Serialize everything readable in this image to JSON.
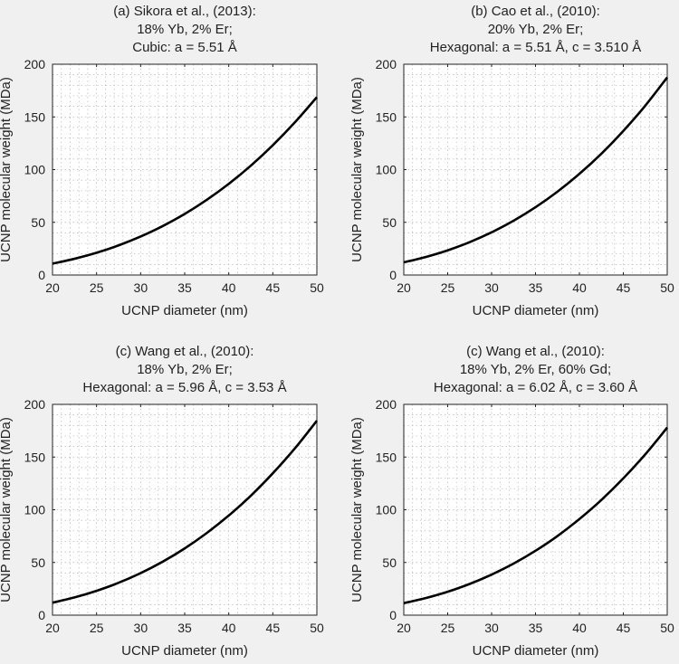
{
  "chart_data": [
    {
      "type": "line",
      "title": [
        "(a) Sikora et al., (2013):",
        "18% Yb, 2% Er;",
        "Cubic: a = 5.51 Å"
      ],
      "xlabel": "UCNP diameter (nm)",
      "ylabel": "UCNP molecular weight (MDa)",
      "xlim": [
        20,
        50
      ],
      "ylim": [
        0,
        200
      ],
      "xticks": [
        20,
        25,
        30,
        35,
        40,
        45,
        50
      ],
      "yticks": [
        0,
        50,
        100,
        150,
        200
      ],
      "grid": true,
      "series": [
        {
          "x": [
            20,
            22.5,
            25,
            27.5,
            30,
            32.5,
            35,
            37.5,
            40,
            42.5,
            45,
            47.5,
            50
          ],
          "y": [
            10.8,
            15.4,
            21.1,
            28.1,
            36.5,
            46.4,
            57.9,
            71.3,
            86.5,
            103.7,
            123.1,
            144.8,
            168.8
          ]
        }
      ]
    },
    {
      "type": "line",
      "title": [
        "(b) Cao et al., (2010):",
        "20% Yb, 2% Er;",
        "Hexagonal: a = 5.51 Å, c = 3.510 Å"
      ],
      "xlabel": "UCNP diameter (nm)",
      "ylabel": "UCNP molecular weight (MDa)",
      "xlim": [
        20,
        50
      ],
      "ylim": [
        0,
        200
      ],
      "xticks": [
        20,
        25,
        30,
        35,
        40,
        45,
        50
      ],
      "yticks": [
        0,
        50,
        100,
        150,
        200
      ],
      "grid": true,
      "series": [
        {
          "x": [
            20,
            22.5,
            25,
            27.5,
            30,
            32.5,
            35,
            37.5,
            40,
            42.5,
            45,
            47.5,
            50
          ],
          "y": [
            12,
            17.1,
            23.4,
            31.2,
            40.5,
            51.5,
            64.3,
            79.1,
            96,
            115.1,
            136.7,
            160.7,
            187.5
          ]
        }
      ]
    },
    {
      "type": "line",
      "title": [
        "(c) Wang et al., (2010):",
        "18% Yb, 2% Er;",
        "Hexagonal: a = 5.96 Å, c = 3.53 Å"
      ],
      "xlabel": "UCNP diameter (nm)",
      "ylabel": "UCNP molecular weight (MDa)",
      "xlim": [
        20,
        50
      ],
      "ylim": [
        0,
        200
      ],
      "xticks": [
        20,
        25,
        30,
        35,
        40,
        45,
        50
      ],
      "yticks": [
        0,
        50,
        100,
        150,
        200
      ],
      "grid": true,
      "series": [
        {
          "x": [
            20,
            22.5,
            25,
            27.5,
            30,
            32.5,
            35,
            37.5,
            40,
            42.5,
            45,
            47.5,
            50
          ],
          "y": [
            11.8,
            16.8,
            23.1,
            30.7,
            39.9,
            50.7,
            63.3,
            77.9,
            94.5,
            113.3,
            134.6,
            158.2,
            184.5
          ]
        }
      ]
    },
    {
      "type": "line",
      "title": [
        "(c) Wang et al., (2010):",
        "18% Yb, 2% Er, 60% Gd;",
        "Hexagonal: a = 6.02 Å, c = 3.60 Å"
      ],
      "xlabel": "UCNP diameter (nm)",
      "ylabel": "UCNP molecular weight (MDa)",
      "xlim": [
        20,
        50
      ],
      "ylim": [
        0,
        200
      ],
      "xticks": [
        20,
        25,
        30,
        35,
        40,
        45,
        50
      ],
      "yticks": [
        0,
        50,
        100,
        150,
        200
      ],
      "grid": true,
      "series": [
        {
          "x": [
            20,
            22.5,
            25,
            27.5,
            30,
            32.5,
            35,
            37.5,
            40,
            42.5,
            45,
            47.5,
            50
          ],
          "y": [
            11.4,
            16.2,
            22.2,
            29.6,
            38.5,
            48.9,
            61.1,
            75.1,
            91.2,
            109.3,
            129.8,
            152.6,
            178
          ]
        }
      ]
    }
  ]
}
